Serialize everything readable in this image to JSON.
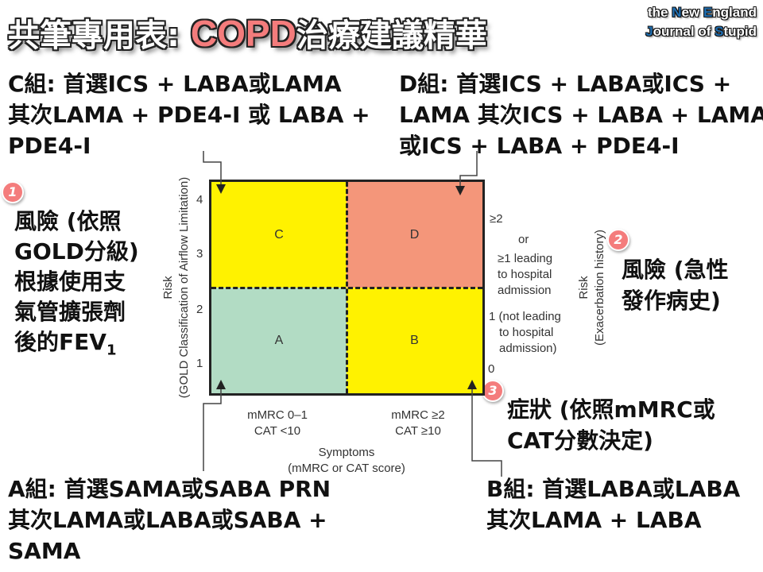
{
  "title": {
    "prefix": "共筆專用表: ",
    "highlight": "COPD",
    "suffix": "治療建議精華"
  },
  "logo": {
    "line1_a": "the ",
    "line1_b": "N",
    "line1_c": "ew ",
    "line1_d": "E",
    "line1_e": "ngland",
    "line2_a": "J",
    "line2_b": "ournal of ",
    "line2_c": "S",
    "line2_d": "tupid"
  },
  "groups": {
    "c": [
      "C組: 首選ICS + LABA或LAMA",
      "其次LAMA + PDE4-I 或 LABA +",
      "PDE4-I"
    ],
    "d": [
      "D組: 首選ICS + LABA或ICS +",
      "LAMA 其次ICS + LABA + LAMA",
      "或ICS + LABA + PDE4-I"
    ],
    "a": [
      "A組: 首選SAMA或SABA PRN",
      "其次LAMA或LABA或SABA +",
      "SAMA"
    ],
    "b": [
      "B組: 首選LABA或LABA",
      "其次LAMA + LABA"
    ]
  },
  "notes": {
    "n1": {
      "badge": "1",
      "lines": [
        "風險 (依照",
        "GOLD分級)",
        "根據使用支",
        "氣管擴張劑",
        "後的FEV"
      ],
      "sub": "1"
    },
    "n2": {
      "badge": "2",
      "lines": [
        "風險 (急性",
        "發作病史)"
      ]
    },
    "n3": {
      "badge": "3",
      "lines": [
        "症狀 (依照mMRC或",
        "CAT分數決定)"
      ]
    }
  },
  "quadrants": {
    "c": {
      "label": "C",
      "color": "#fff200"
    },
    "d": {
      "label": "D",
      "color": "#f4967a"
    },
    "a": {
      "label": "A",
      "color": "#b2dcc4"
    },
    "b": {
      "label": "B",
      "color": "#fff200"
    }
  },
  "left_axis": {
    "title": "Risk",
    "subtitle": "(GOLD Classification of Airflow Limitation)",
    "ticks": [
      "4",
      "3",
      "2",
      "1"
    ]
  },
  "right_axis": {
    "title": "Risk",
    "subtitle": "(Exacerbation history)",
    "high": [
      "≥2",
      "or",
      "≥1 leading",
      "to hospital",
      "admission"
    ],
    "low": [
      "1 (not leading",
      "to hospital",
      "admission)"
    ],
    "zero": "0"
  },
  "bottom_axis": {
    "left": [
      "mMRC 0–1",
      "CAT <10"
    ],
    "right": [
      "mMRC ≥2",
      "CAT ≥10"
    ],
    "title": "Symptoms",
    "subtitle": "(mMRC or CAT score)"
  }
}
